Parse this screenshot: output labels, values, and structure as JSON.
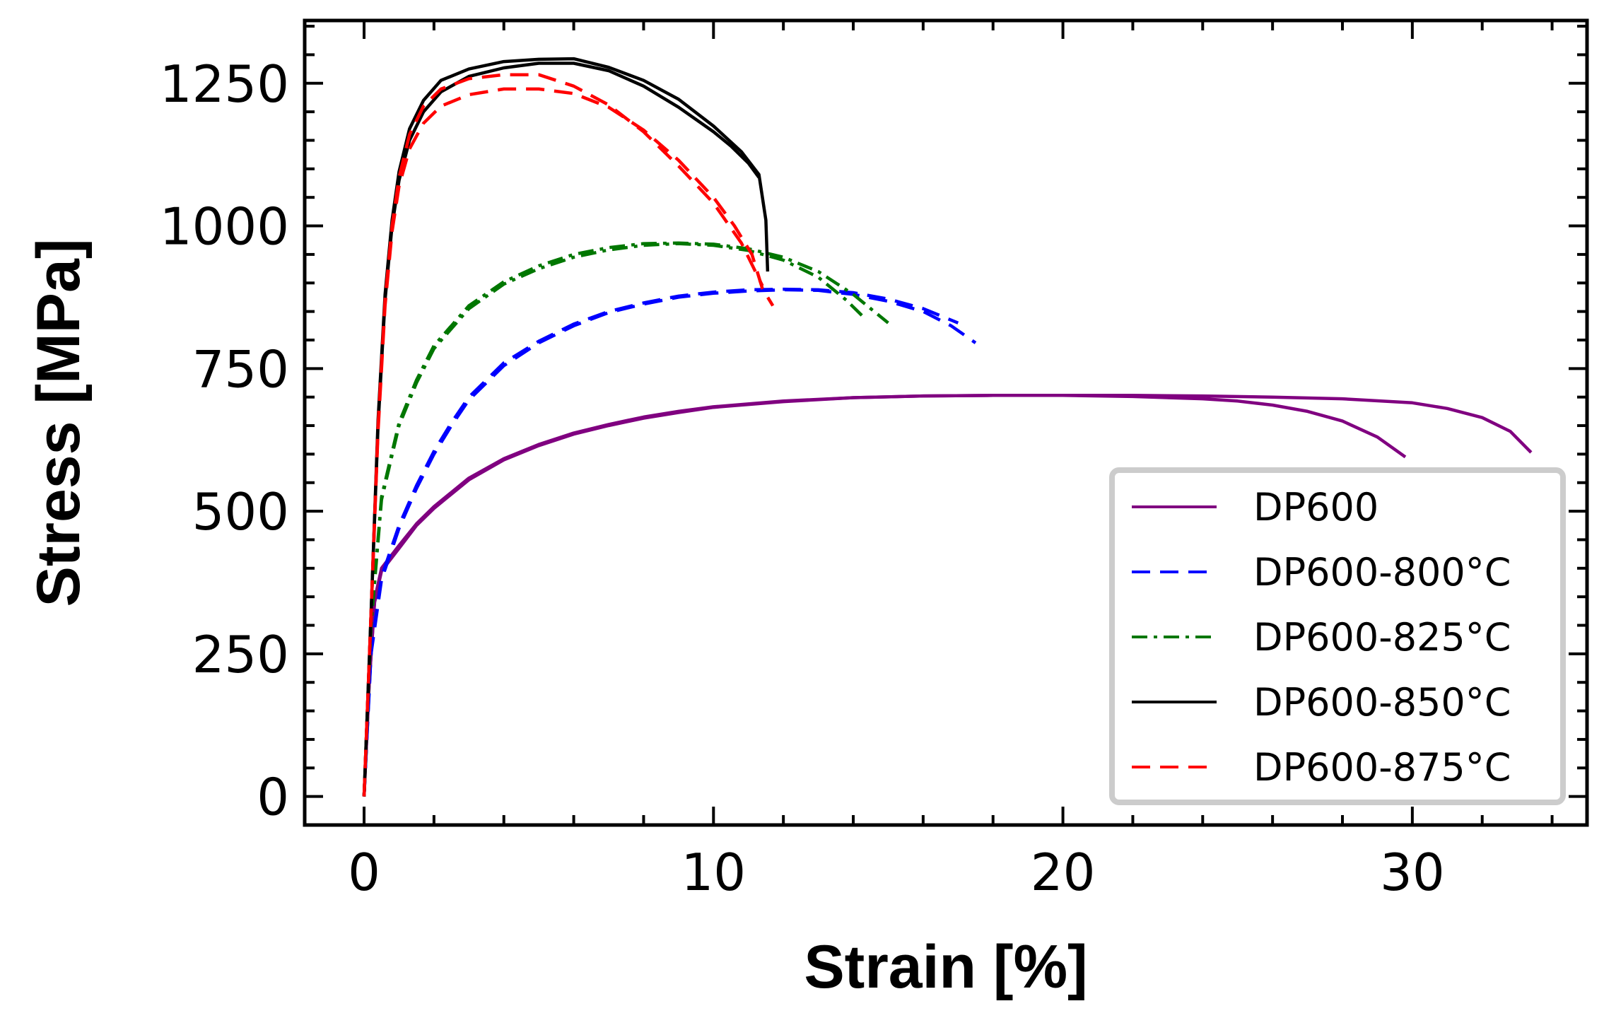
{
  "chart_data": {
    "type": "line",
    "title": "",
    "xlabel": "Strain [%]",
    "ylabel": "Stress [MPa]",
    "xlim": [
      -1.7,
      35
    ],
    "ylim": [
      -50,
      1360
    ],
    "xticks": [
      0,
      10,
      20,
      30
    ],
    "xtick_labels": [
      "0",
      "10",
      "20",
      "30"
    ],
    "yticks": [
      0,
      250,
      500,
      750,
      1000,
      1250
    ],
    "ytick_labels": [
      "0",
      "250",
      "500",
      "750",
      "1000",
      "1250"
    ],
    "x_minor_step": 2,
    "y_minor_step": 50,
    "grid": false,
    "legend_position": "lower-right",
    "series": [
      {
        "name": "DP600",
        "color": "#800080",
        "dash": "",
        "curves": [
          [
            [
              0,
              0
            ],
            [
              0.15,
              200
            ],
            [
              0.3,
              340
            ],
            [
              0.5,
              395
            ],
            [
              1,
              435
            ],
            [
              1.5,
              475
            ],
            [
              2,
              505
            ],
            [
              3,
              555
            ],
            [
              4,
              590
            ],
            [
              5,
              615
            ],
            [
              6,
              635
            ],
            [
              7,
              650
            ],
            [
              8,
              663
            ],
            [
              9,
              673
            ],
            [
              10,
              682
            ],
            [
              12,
              692
            ],
            [
              14,
              699
            ],
            [
              16,
              702
            ],
            [
              18,
              703
            ],
            [
              20,
              703
            ],
            [
              22,
              701
            ],
            [
              24,
              697
            ],
            [
              25,
              693
            ],
            [
              26,
              686
            ],
            [
              27,
              675
            ],
            [
              28,
              658
            ],
            [
              29,
              630
            ],
            [
              29.8,
              595
            ]
          ],
          [
            [
              0,
              0
            ],
            [
              0.15,
              200
            ],
            [
              0.3,
              345
            ],
            [
              0.5,
              400
            ],
            [
              1,
              440
            ],
            [
              1.5,
              478
            ],
            [
              2,
              508
            ],
            [
              3,
              558
            ],
            [
              4,
              592
            ],
            [
              5,
              617
            ],
            [
              6,
              637
            ],
            [
              7,
              652
            ],
            [
              8,
              665
            ],
            [
              9,
              675
            ],
            [
              10,
              683
            ],
            [
              12,
              693
            ],
            [
              14,
              699
            ],
            [
              16,
              702
            ],
            [
              18,
              703
            ],
            [
              20,
              703
            ],
            [
              22,
              703
            ],
            [
              24,
              702
            ],
            [
              26,
              700
            ],
            [
              28,
              697
            ],
            [
              30,
              690
            ],
            [
              31,
              680
            ],
            [
              32,
              664
            ],
            [
              32.8,
              640
            ],
            [
              33.4,
              603
            ]
          ]
        ]
      },
      {
        "name": "DP600-800°C",
        "color": "#0000ff",
        "dash": "26 14",
        "curves": [
          [
            [
              0,
              0
            ],
            [
              0.2,
              250
            ],
            [
              0.5,
              380
            ],
            [
              1,
              470
            ],
            [
              1.5,
              540
            ],
            [
              2,
              600
            ],
            [
              2.5,
              650
            ],
            [
              3,
              695
            ],
            [
              4,
              755
            ],
            [
              5,
              795
            ],
            [
              6,
              825
            ],
            [
              7,
              848
            ],
            [
              8,
              863
            ],
            [
              9,
              875
            ],
            [
              10,
              882
            ],
            [
              11,
              886
            ],
            [
              12,
              888
            ],
            [
              13,
              887
            ],
            [
              14,
              880
            ],
            [
              15,
              868
            ],
            [
              16,
              850
            ],
            [
              16.8,
              825
            ],
            [
              17.5,
              795
            ]
          ],
          [
            [
              0,
              0
            ],
            [
              0.2,
              255
            ],
            [
              0.5,
              385
            ],
            [
              1,
              475
            ],
            [
              1.5,
              545
            ],
            [
              2,
              605
            ],
            [
              2.5,
              655
            ],
            [
              3,
              700
            ],
            [
              4,
              760
            ],
            [
              5,
              798
            ],
            [
              6,
              828
            ],
            [
              7,
              850
            ],
            [
              8,
              865
            ],
            [
              9,
              877
            ],
            [
              10,
              884
            ],
            [
              11,
              888
            ],
            [
              12,
              889
            ],
            [
              13,
              888
            ],
            [
              14,
              883
            ],
            [
              15,
              872
            ],
            [
              16,
              855
            ],
            [
              17,
              830
            ]
          ]
        ]
      },
      {
        "name": "DP600-825°C",
        "color": "#007700",
        "dash": "22 9 5 9",
        "curves": [
          [
            [
              0,
              0
            ],
            [
              0.2,
              300
            ],
            [
              0.5,
              520
            ],
            [
              1,
              650
            ],
            [
              1.5,
              725
            ],
            [
              2,
              785
            ],
            [
              3,
              855
            ],
            [
              4,
              898
            ],
            [
              5,
              925
            ],
            [
              6,
              945
            ],
            [
              7,
              958
            ],
            [
              8,
              966
            ],
            [
              9,
              969
            ],
            [
              10,
              966
            ],
            [
              11,
              957
            ],
            [
              12,
              940
            ],
            [
              13,
              910
            ],
            [
              13.8,
              870
            ],
            [
              14.3,
              840
            ]
          ],
          [
            [
              0,
              0
            ],
            [
              0.2,
              305
            ],
            [
              0.5,
              525
            ],
            [
              1,
              655
            ],
            [
              1.5,
              730
            ],
            [
              2,
              790
            ],
            [
              3,
              860
            ],
            [
              4,
              902
            ],
            [
              5,
              930
            ],
            [
              6,
              950
            ],
            [
              7,
              962
            ],
            [
              8,
              969
            ],
            [
              9,
              970
            ],
            [
              10,
              968
            ],
            [
              11,
              960
            ],
            [
              12,
              945
            ],
            [
              13,
              920
            ],
            [
              14,
              880
            ],
            [
              15,
              830
            ]
          ]
        ]
      },
      {
        "name": "DP600-850°C",
        "color": "#000000",
        "dash": "",
        "curves": [
          [
            [
              0,
              0
            ],
            [
              0.2,
              320
            ],
            [
              0.4,
              650
            ],
            [
              0.6,
              870
            ],
            [
              0.8,
              1000
            ],
            [
              1,
              1080
            ],
            [
              1.3,
              1150
            ],
            [
              1.7,
              1200
            ],
            [
              2.2,
              1235
            ],
            [
              3,
              1262
            ],
            [
              4,
              1277
            ],
            [
              5,
              1285
            ],
            [
              6,
              1285
            ],
            [
              7,
              1272
            ],
            [
              8,
              1245
            ],
            [
              9,
              1208
            ],
            [
              10,
              1165
            ],
            [
              10.5,
              1140
            ],
            [
              11,
              1110
            ],
            [
              11.3,
              1085
            ]
          ],
          [
            [
              0,
              0
            ],
            [
              0.2,
              320
            ],
            [
              0.4,
              660
            ],
            [
              0.6,
              880
            ],
            [
              0.8,
              1010
            ],
            [
              1,
              1095
            ],
            [
              1.3,
              1170
            ],
            [
              1.7,
              1220
            ],
            [
              2.2,
              1255
            ],
            [
              3,
              1275
            ],
            [
              4,
              1288
            ],
            [
              5,
              1292
            ],
            [
              6,
              1293
            ],
            [
              7,
              1278
            ],
            [
              8,
              1255
            ],
            [
              9,
              1222
            ],
            [
              10,
              1175
            ],
            [
              10.8,
              1130
            ],
            [
              11.3,
              1090
            ],
            [
              11.5,
              1010
            ],
            [
              11.55,
              920
            ]
          ]
        ]
      },
      {
        "name": "DP600-875°C",
        "color": "#ff0000",
        "dash": "26 14",
        "curves": [
          [
            [
              0,
              0
            ],
            [
              0.2,
              320
            ],
            [
              0.4,
              640
            ],
            [
              0.6,
              860
            ],
            [
              0.8,
              990
            ],
            [
              1,
              1070
            ],
            [
              1.3,
              1135
            ],
            [
              1.7,
              1180
            ],
            [
              2.2,
              1210
            ],
            [
              3,
              1230
            ],
            [
              4,
              1240
            ],
            [
              5,
              1240
            ],
            [
              6,
              1232
            ],
            [
              7,
              1208
            ],
            [
              8,
              1168
            ],
            [
              9,
              1115
            ],
            [
              10,
              1050
            ],
            [
              10.6,
              1000
            ],
            [
              11.1,
              950
            ],
            [
              11.4,
              890
            ],
            [
              11.7,
              860
            ]
          ],
          [
            [
              0,
              0
            ],
            [
              0.2,
              320
            ],
            [
              0.4,
              650
            ],
            [
              0.6,
              870
            ],
            [
              0.8,
              1000
            ],
            [
              1,
              1085
            ],
            [
              1.3,
              1160
            ],
            [
              1.7,
              1210
            ],
            [
              2.2,
              1240
            ],
            [
              3,
              1258
            ],
            [
              4,
              1265
            ],
            [
              5,
              1265
            ],
            [
              6,
              1245
            ],
            [
              7,
              1212
            ],
            [
              8,
              1165
            ],
            [
              9,
              1105
            ],
            [
              10,
              1040
            ],
            [
              10.8,
              970
            ],
            [
              11.4,
              895
            ]
          ]
        ]
      }
    ]
  }
}
